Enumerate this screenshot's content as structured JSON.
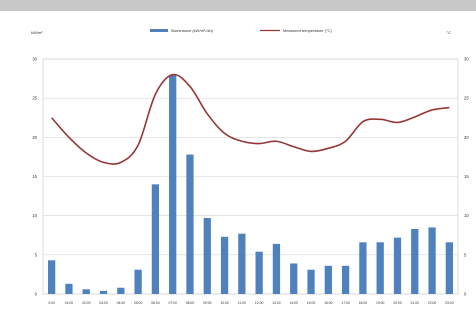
{
  "window": {
    "top_bar_color": "#c7c7c7"
  },
  "chart_data": {
    "type": "bar",
    "categories": [
      "0:00",
      "01:00",
      "02:00",
      "03:00",
      "04:00",
      "05:00",
      "06:00",
      "07:00",
      "08:00",
      "09:00",
      "10:00",
      "11:00",
      "12:00",
      "13:00",
      "14:00",
      "15:00",
      "16:00",
      "17:00",
      "18:00",
      "19:00",
      "20:00",
      "21:00",
      "22:00",
      "23:00"
    ],
    "y_left_label": "kW/m²",
    "y_right_label": "°C",
    "ylim": [
      0,
      30
    ],
    "y_ticks": [
      0,
      5,
      10,
      15,
      20,
      25,
      30
    ],
    "grid": true,
    "legend_position": "top-center",
    "series": [
      {
        "name": "Illuminance (kW/m²-ish)",
        "type": "bar",
        "color": "#4f81bd",
        "axis": "left",
        "values": [
          4.3,
          1.3,
          0.6,
          0.4,
          0.8,
          3.1,
          14.0,
          28.0,
          17.8,
          9.7,
          7.3,
          7.7,
          5.4,
          6.4,
          3.9,
          3.1,
          3.6,
          3.6,
          6.6,
          6.6,
          7.2,
          8.3,
          8.5,
          6.6
        ]
      },
      {
        "name": "Measured temperature (°C)",
        "type": "line",
        "color": "#953735",
        "axis": "right",
        "values": [
          22.5,
          20.0,
          18.0,
          16.8,
          16.8,
          19.0,
          25.5,
          28.0,
          26.5,
          23.0,
          20.5,
          19.5,
          19.2,
          19.5,
          18.8,
          18.2,
          18.6,
          19.5,
          22.0,
          22.3,
          21.9,
          22.6,
          23.5,
          23.8
        ]
      }
    ]
  }
}
